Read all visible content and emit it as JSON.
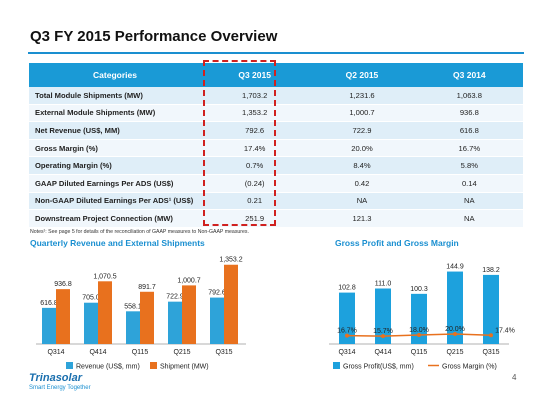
{
  "title": "Q3 FY 2015 Performance Overview",
  "table": {
    "headers": [
      "Categories",
      "Q3 2015",
      "Q2 2015",
      "Q3 2014"
    ],
    "rows": [
      {
        "label": "Total Module Shipments (MW)",
        "values": [
          "1,703.2",
          "1,231.6",
          "1,063.8"
        ]
      },
      {
        "label": "External Module Shipments (MW)",
        "values": [
          "1,353.2",
          "1,000.7",
          "936.8"
        ]
      },
      {
        "label": "Net Revenue (US$, MM)",
        "values": [
          "792.6",
          "722.9",
          "616.8"
        ]
      },
      {
        "label": "Gross Margin (%)",
        "values": [
          "17.4%",
          "20.0%",
          "16.7%"
        ]
      },
      {
        "label": "Operating Margin  (%)",
        "values": [
          "0.7%",
          "8.4%",
          "5.8%"
        ]
      },
      {
        "label": "GAAP Diluted Earnings Per ADS (US$)",
        "values": [
          "(0.24)",
          "0.42",
          "0.14"
        ]
      },
      {
        "label": "Non-GAAP Diluted Earnings Per ADS¹ (US$)",
        "values": [
          "0.21",
          "NA",
          "NA"
        ]
      },
      {
        "label": "Downstream Project Connection (MW)",
        "values": [
          "251.9",
          "121.3",
          "NA"
        ]
      }
    ]
  },
  "notes": "Notes¹: See page 5 for details of the reconciliation of GAAP measures to Non-GAAP measures.",
  "charts_titles": {
    "left": "Quarterly Revenue and External Shipments",
    "right": "Gross Profit and Gross Margin"
  },
  "chart_data": [
    {
      "type": "bar",
      "title": "Quarterly Revenue and External Shipments",
      "categories": [
        "Q314",
        "Q414",
        "Q115",
        "Q215",
        "Q315"
      ],
      "series": [
        {
          "name": "Revenue (US$, mm)",
          "values": [
            616.8,
            705.0,
            558.1,
            722.9,
            792.6
          ],
          "labels": [
            "616.8",
            "705.0",
            "558.1",
            "722.9",
            "792.6"
          ],
          "color": "#2ea3d9"
        },
        {
          "name": "Shipment (MW)",
          "values": [
            936.8,
            1070.5,
            891.7,
            1000.7,
            1353.2
          ],
          "labels": [
            "936.8",
            "1,070.5",
            "891.7",
            "1,000.7",
            "1,353.2"
          ],
          "color": "#e8711e"
        }
      ],
      "ylim": [
        0,
        1400
      ]
    },
    {
      "type": "bar",
      "title": "Gross Profit and Gross Margin",
      "categories": [
        "Q314",
        "Q414",
        "Q115",
        "Q215",
        "Q315"
      ],
      "series": [
        {
          "name": "Gross Profit(US$, mm)",
          "values": [
            102.8,
            111.0,
            100.3,
            144.9,
            138.2
          ],
          "labels": [
            "102.8",
            "111.0",
            "100.3",
            "144.9",
            "138.2"
          ],
          "color": "#1da1dd"
        },
        {
          "name": "Gross Margin (%)",
          "values": [
            16.7,
            15.7,
            18.0,
            20.0,
            17.4
          ],
          "labels": [
            "16.7%",
            "15.7%",
            "18.0%",
            "20.0%",
            "17.4%"
          ],
          "color": "#e8711e",
          "kind": "line"
        }
      ],
      "ylim": [
        0,
        160
      ]
    }
  ],
  "logo": {
    "name": "Trinasolar",
    "tagline": "Smart Energy Together"
  },
  "page_number": "4"
}
